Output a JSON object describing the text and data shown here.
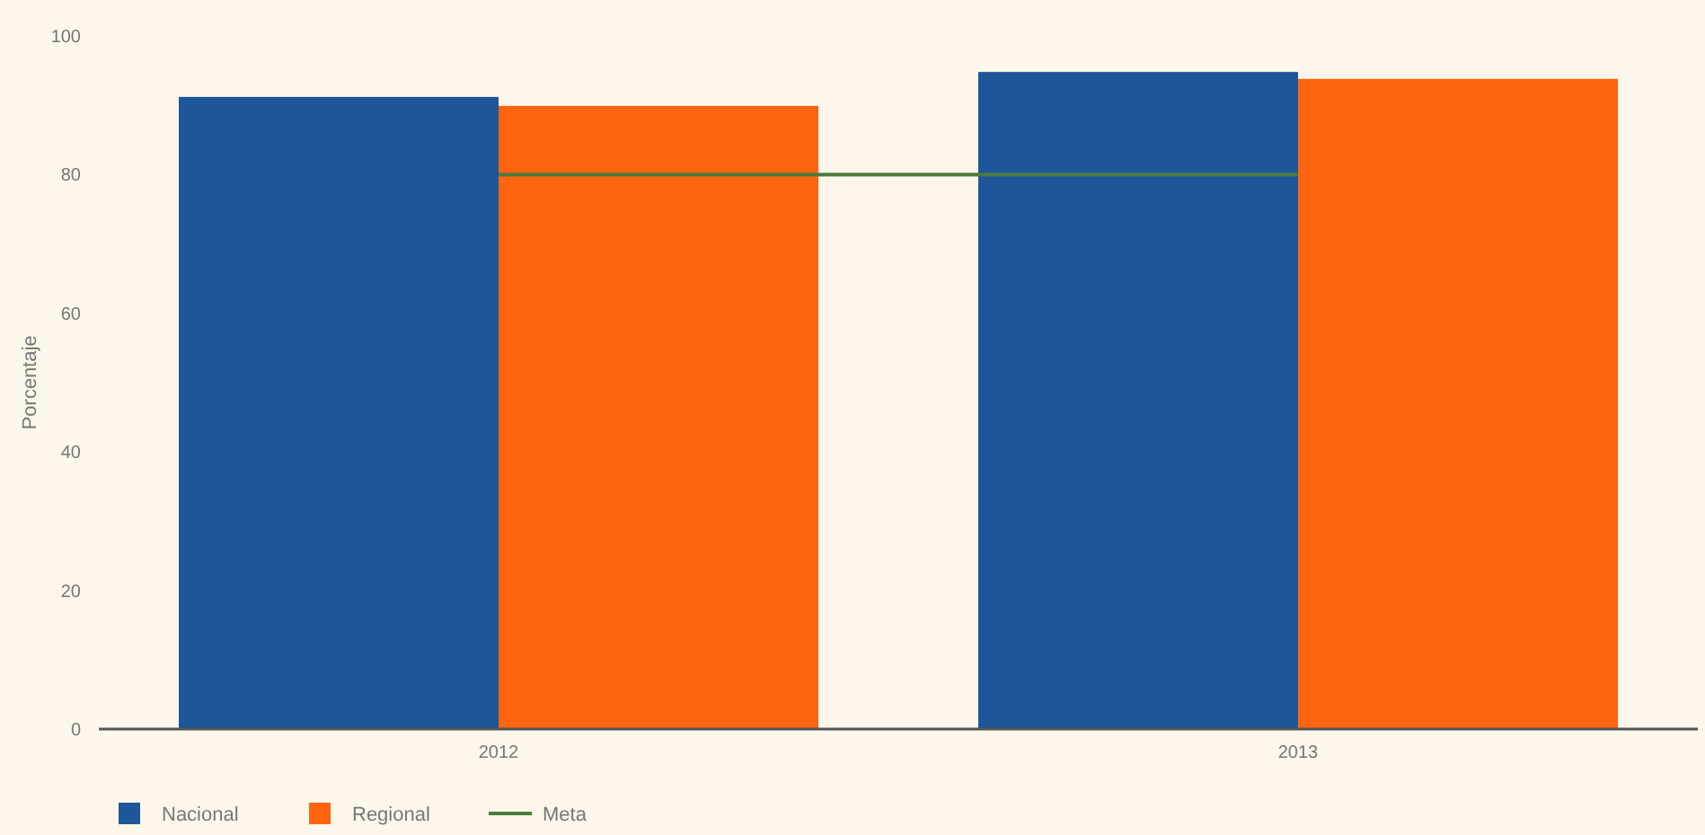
{
  "chart_data": {
    "type": "bar",
    "categories": [
      "2012",
      "2013"
    ],
    "ylabel": "Porcentaje",
    "ylim": [
      0,
      100
    ],
    "yticks": [
      0,
      20,
      40,
      60,
      80,
      100
    ],
    "grid": false,
    "legend": "bottom left",
    "series": [
      {
        "name": "Nacional",
        "color": "#1d5799",
        "values": [
          91.2,
          94.8
        ]
      },
      {
        "name": "Regional",
        "color": "#ff6411",
        "values": [
          89.9,
          93.8
        ]
      },
      {
        "name": "Meta",
        "type": "line",
        "color": "#4b7b3c",
        "values": [
          80,
          80
        ]
      }
    ]
  }
}
